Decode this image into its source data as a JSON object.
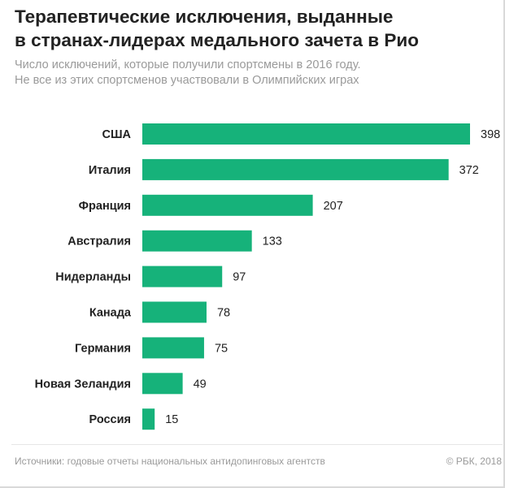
{
  "chart_data": {
    "type": "bar",
    "orientation": "horizontal",
    "title_lines": [
      "Терапевтические исключения, выданные",
      "в странах-лидерах медального зачета в Рио"
    ],
    "subtitle_lines": [
      "Число исключений, которые получили спортсмены в 2016 году.",
      "Не все из этих спортсменов участвовали в Олимпийских играх"
    ],
    "categories": [
      "США",
      "Италия",
      "Франция",
      "Австралия",
      "Нидерланды",
      "Канада",
      "Германия",
      "Новая Зеландия",
      "Россия"
    ],
    "values": [
      398,
      372,
      207,
      133,
      97,
      78,
      75,
      49,
      15
    ],
    "xlim": [
      0,
      398
    ],
    "bar_color": "#16b27a",
    "grid": false,
    "axis_visible": false,
    "data_labels": true
  },
  "footer": {
    "source": "Источники: годовые отчеты национальных антидопинговых агентств",
    "credit": "© РБК, 2018"
  }
}
